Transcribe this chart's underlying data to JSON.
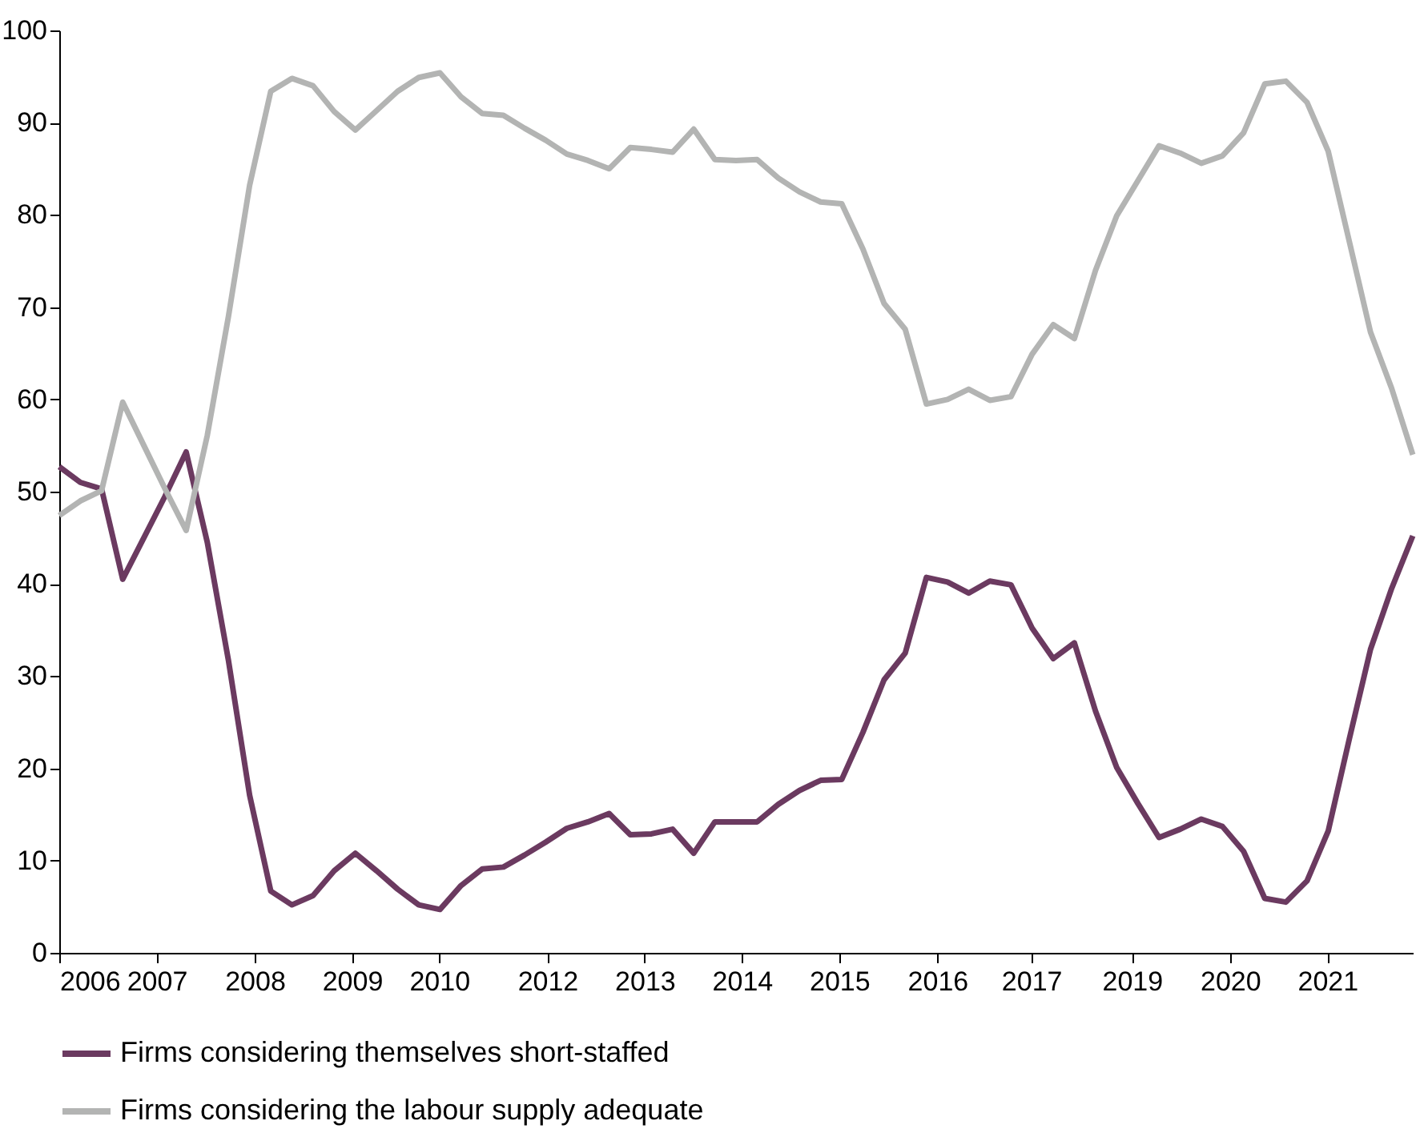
{
  "chart_data": {
    "type": "line",
    "x": [
      2006,
      2006.25,
      2006.5,
      2006.75,
      2007,
      2007.25,
      2007.5,
      2007.75,
      2008,
      2008.25,
      2008.5,
      2008.75,
      2009,
      2009.25,
      2009.5,
      2009.75,
      2010,
      2010.25,
      2010.5,
      2010.75,
      2011,
      2011.25,
      2011.5,
      2011.75,
      2012,
      2012.25,
      2012.5,
      2012.75,
      2013,
      2013.25,
      2013.5,
      2013.75,
      2014,
      2014.25,
      2014.5,
      2014.75,
      2015,
      2015.25,
      2015.5,
      2015.75,
      2016,
      2016.25,
      2016.5,
      2016.75,
      2017,
      2017.25,
      2017.5,
      2017.75,
      2018,
      2018.25,
      2018.5,
      2018.75,
      2019,
      2019.25,
      2019.5,
      2019.75,
      2020,
      2020.25,
      2020.5,
      2020.75,
      2021,
      2021.25,
      2021.5,
      2021.75,
      2022
    ],
    "series": [
      {
        "name": "Firms considering themselves short-staffed",
        "color": "#6b3a60",
        "values": [
          52.7,
          51,
          50.3,
          40.5,
          45,
          49.5,
          54.3,
          44.5,
          31.7,
          17.1,
          6.7,
          5.2,
          6.2,
          8.9,
          10.8,
          8.9,
          6.9,
          5.2,
          4.7,
          7.3,
          9.1,
          9.3,
          10.6,
          12,
          13.5,
          14.2,
          15.1,
          12.8,
          12.9,
          13.4,
          10.8,
          14.2,
          14.2,
          14.2,
          16.1,
          17.6,
          18.7,
          18.8,
          23.9,
          29.6,
          32.5,
          40.7,
          40.2,
          39,
          40.3,
          39.9,
          35.2,
          31.9,
          33.6,
          26.2,
          20.1,
          16.2,
          12.5,
          13.4,
          14.5,
          13.7,
          11,
          5.9,
          5.5,
          7.8,
          13.2,
          23.2,
          32.9,
          39.5,
          45.2
        ]
      },
      {
        "name": "Firms considering the labour supply adequate",
        "color": "#b3b4b3",
        "values": [
          47.4,
          49,
          50.1,
          59.7,
          55,
          50.3,
          45.8,
          56.1,
          69,
          83.2,
          93.4,
          94.8,
          94,
          91.2,
          89.2,
          91.3,
          93.4,
          94.9,
          95.4,
          92.8,
          91,
          90.8,
          89.4,
          88.1,
          86.6,
          85.9,
          85,
          87.3,
          87.1,
          86.8,
          89.3,
          86,
          85.9,
          86,
          84,
          82.5,
          81.4,
          81.2,
          76.3,
          70.4,
          67.6,
          59.5,
          60,
          61.1,
          59.9,
          60.3,
          64.9,
          68.1,
          66.6,
          74,
          79.9,
          83.7,
          87.5,
          86.7,
          85.6,
          86.4,
          88.9,
          94.2,
          94.5,
          92.2,
          86.9,
          77.1,
          67.3,
          61.2,
          54
        ]
      }
    ],
    "xlim": [
      2006,
      2022
    ],
    "xticks": [
      {
        "value": 2006,
        "label": "2006"
      },
      {
        "value": 2007.15,
        "label": "2007"
      },
      {
        "value": 2008.31,
        "label": "2008"
      },
      {
        "value": 2009.46,
        "label": "2009"
      },
      {
        "value": 2010.49,
        "label": "2010"
      },
      {
        "value": 2011.77,
        "label": "2012"
      },
      {
        "value": 2012.92,
        "label": "2013"
      },
      {
        "value": 2014.07,
        "label": "2014"
      },
      {
        "value": 2015.22,
        "label": "2015"
      },
      {
        "value": 2016.38,
        "label": "2016"
      },
      {
        "value": 2017.49,
        "label": "2017"
      },
      {
        "value": 2018.68,
        "label": "2019"
      },
      {
        "value": 2019.84,
        "label": "2020"
      },
      {
        "value": 2020.99,
        "label": "2021"
      }
    ],
    "ylim": [
      0,
      100
    ],
    "yticks": [
      0,
      10,
      20,
      30,
      40,
      50,
      60,
      70,
      80,
      90,
      100
    ],
    "grid": false,
    "legend": "bottom",
    "marker": "none",
    "line_style": "solid"
  }
}
